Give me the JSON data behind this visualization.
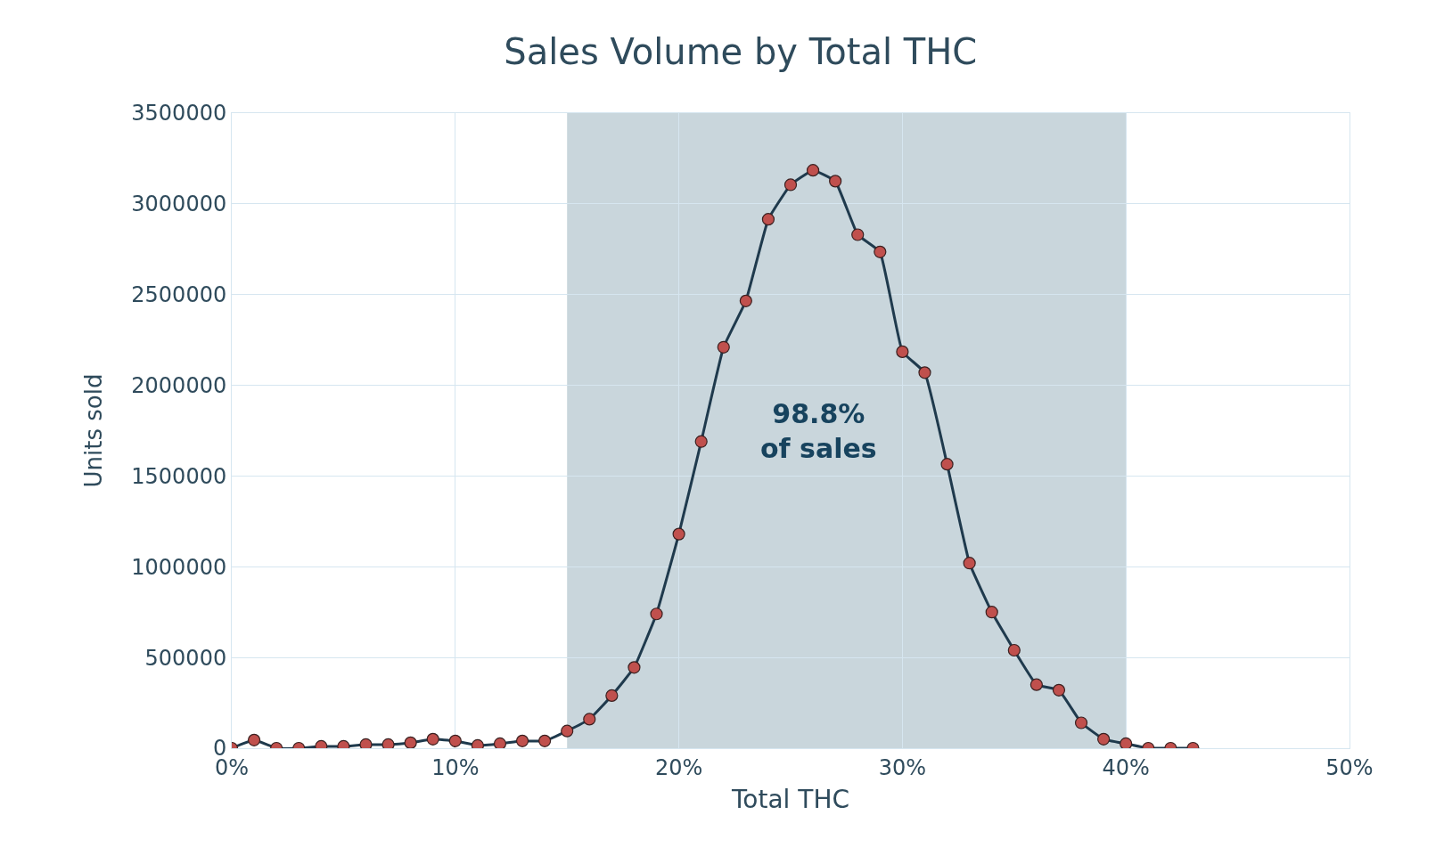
{
  "chart_data": {
    "type": "line",
    "title": "Sales Volume by Total THC",
    "xlabel": "Total THC",
    "ylabel": "Units sold",
    "x": [
      0,
      1,
      2,
      3,
      4,
      5,
      6,
      7,
      8,
      9,
      10,
      11,
      12,
      13,
      14,
      15,
      16,
      17,
      18,
      19,
      20,
      21,
      22,
      23,
      24,
      25,
      26,
      27,
      28,
      29,
      30,
      31,
      32,
      33,
      34,
      35,
      36,
      37,
      38,
      39,
      40,
      41,
      42,
      43
    ],
    "series": [
      {
        "color": "#c0504d",
        "values": [
          0,
          45000,
          0,
          0,
          10000,
          10000,
          20000,
          20000,
          30000,
          50000,
          40000,
          15000,
          25000,
          40000,
          40000,
          95000,
          160000,
          290000,
          445000,
          740000,
          1180000,
          1690000,
          2210000,
          2465000,
          2915000,
          3105000,
          3185000,
          3125000,
          2830000,
          2735000,
          2185000,
          2070000,
          1565000,
          1020000,
          750000,
          540000,
          350000,
          320000,
          140000,
          50000,
          25000,
          0,
          0,
          0
        ]
      }
    ],
    "xlim": [
      0,
      50
    ],
    "xticks": [
      {
        "value": 0,
        "label": "0%"
      },
      {
        "value": 10,
        "label": "10%"
      },
      {
        "value": 20,
        "label": "20%"
      },
      {
        "value": 30,
        "label": "30%"
      },
      {
        "value": 40,
        "label": "40%"
      },
      {
        "value": 50,
        "label": "50%"
      }
    ],
    "ylim": [
      0,
      3500000
    ],
    "yticks": [
      0,
      500000,
      1000000,
      1500000,
      2000000,
      2500000,
      3000000,
      3500000
    ],
    "bands": [
      {
        "axis": "x",
        "from": 15,
        "to": 40,
        "color": "#c9d6dc"
      }
    ],
    "annotations": [
      "98.8%\nof sales"
    ],
    "grid": true,
    "marker": "circle",
    "line_style": "solid"
  }
}
